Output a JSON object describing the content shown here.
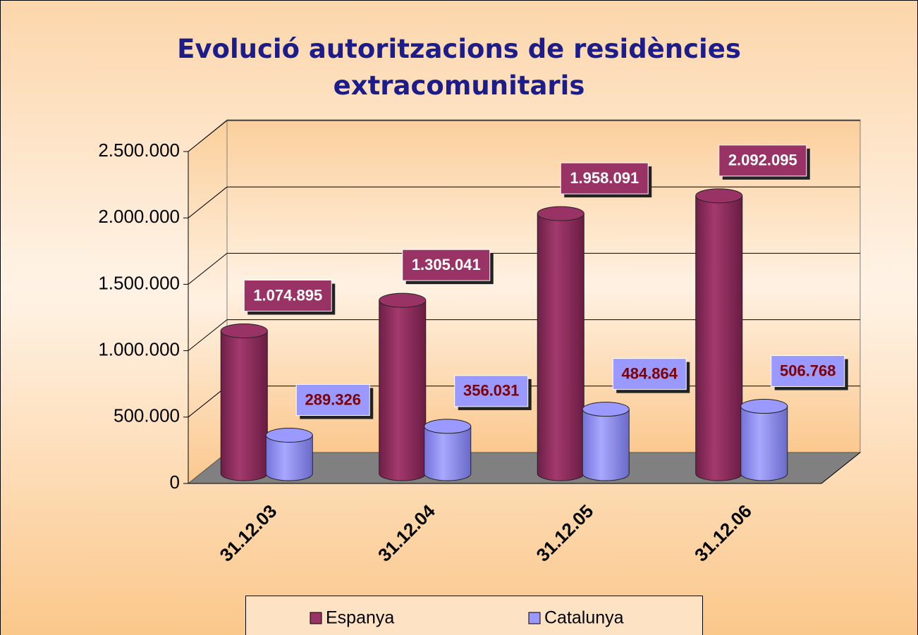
{
  "chart_data": {
    "type": "bar3d",
    "title": "Evolució autoritzacions de residències extracomunitaris",
    "categories": [
      "31.12.03",
      "31.12.04",
      "31.12.05",
      "31.12.06"
    ],
    "series": [
      {
        "name": "Espanya",
        "color": "#993366",
        "values": [
          1074895,
          1305041,
          1958091,
          2092095
        ],
        "value_labels": [
          "1.074.895",
          "1.305.041",
          "1.958.091",
          "2.092.095"
        ]
      },
      {
        "name": "Catalunya",
        "color": "#9999ff",
        "values": [
          289326,
          356031,
          484864,
          506768
        ],
        "value_labels": [
          "289.326",
          "356.031",
          "484.864",
          "506.768"
        ]
      }
    ],
    "ylim": [
      0,
      2500000
    ],
    "yticks": [
      0,
      {
        "value": 500000,
        "label": "500.000"
      },
      {
        "value": 1000000,
        "label": "1.000.000"
      },
      {
        "value": 1500000,
        "label": "1.500.000"
      },
      {
        "value": 2000000,
        "label": "2.000.000"
      },
      {
        "value": 2500000,
        "label": "2.500.000"
      }
    ],
    "grid": true,
    "legend": "bottom"
  }
}
